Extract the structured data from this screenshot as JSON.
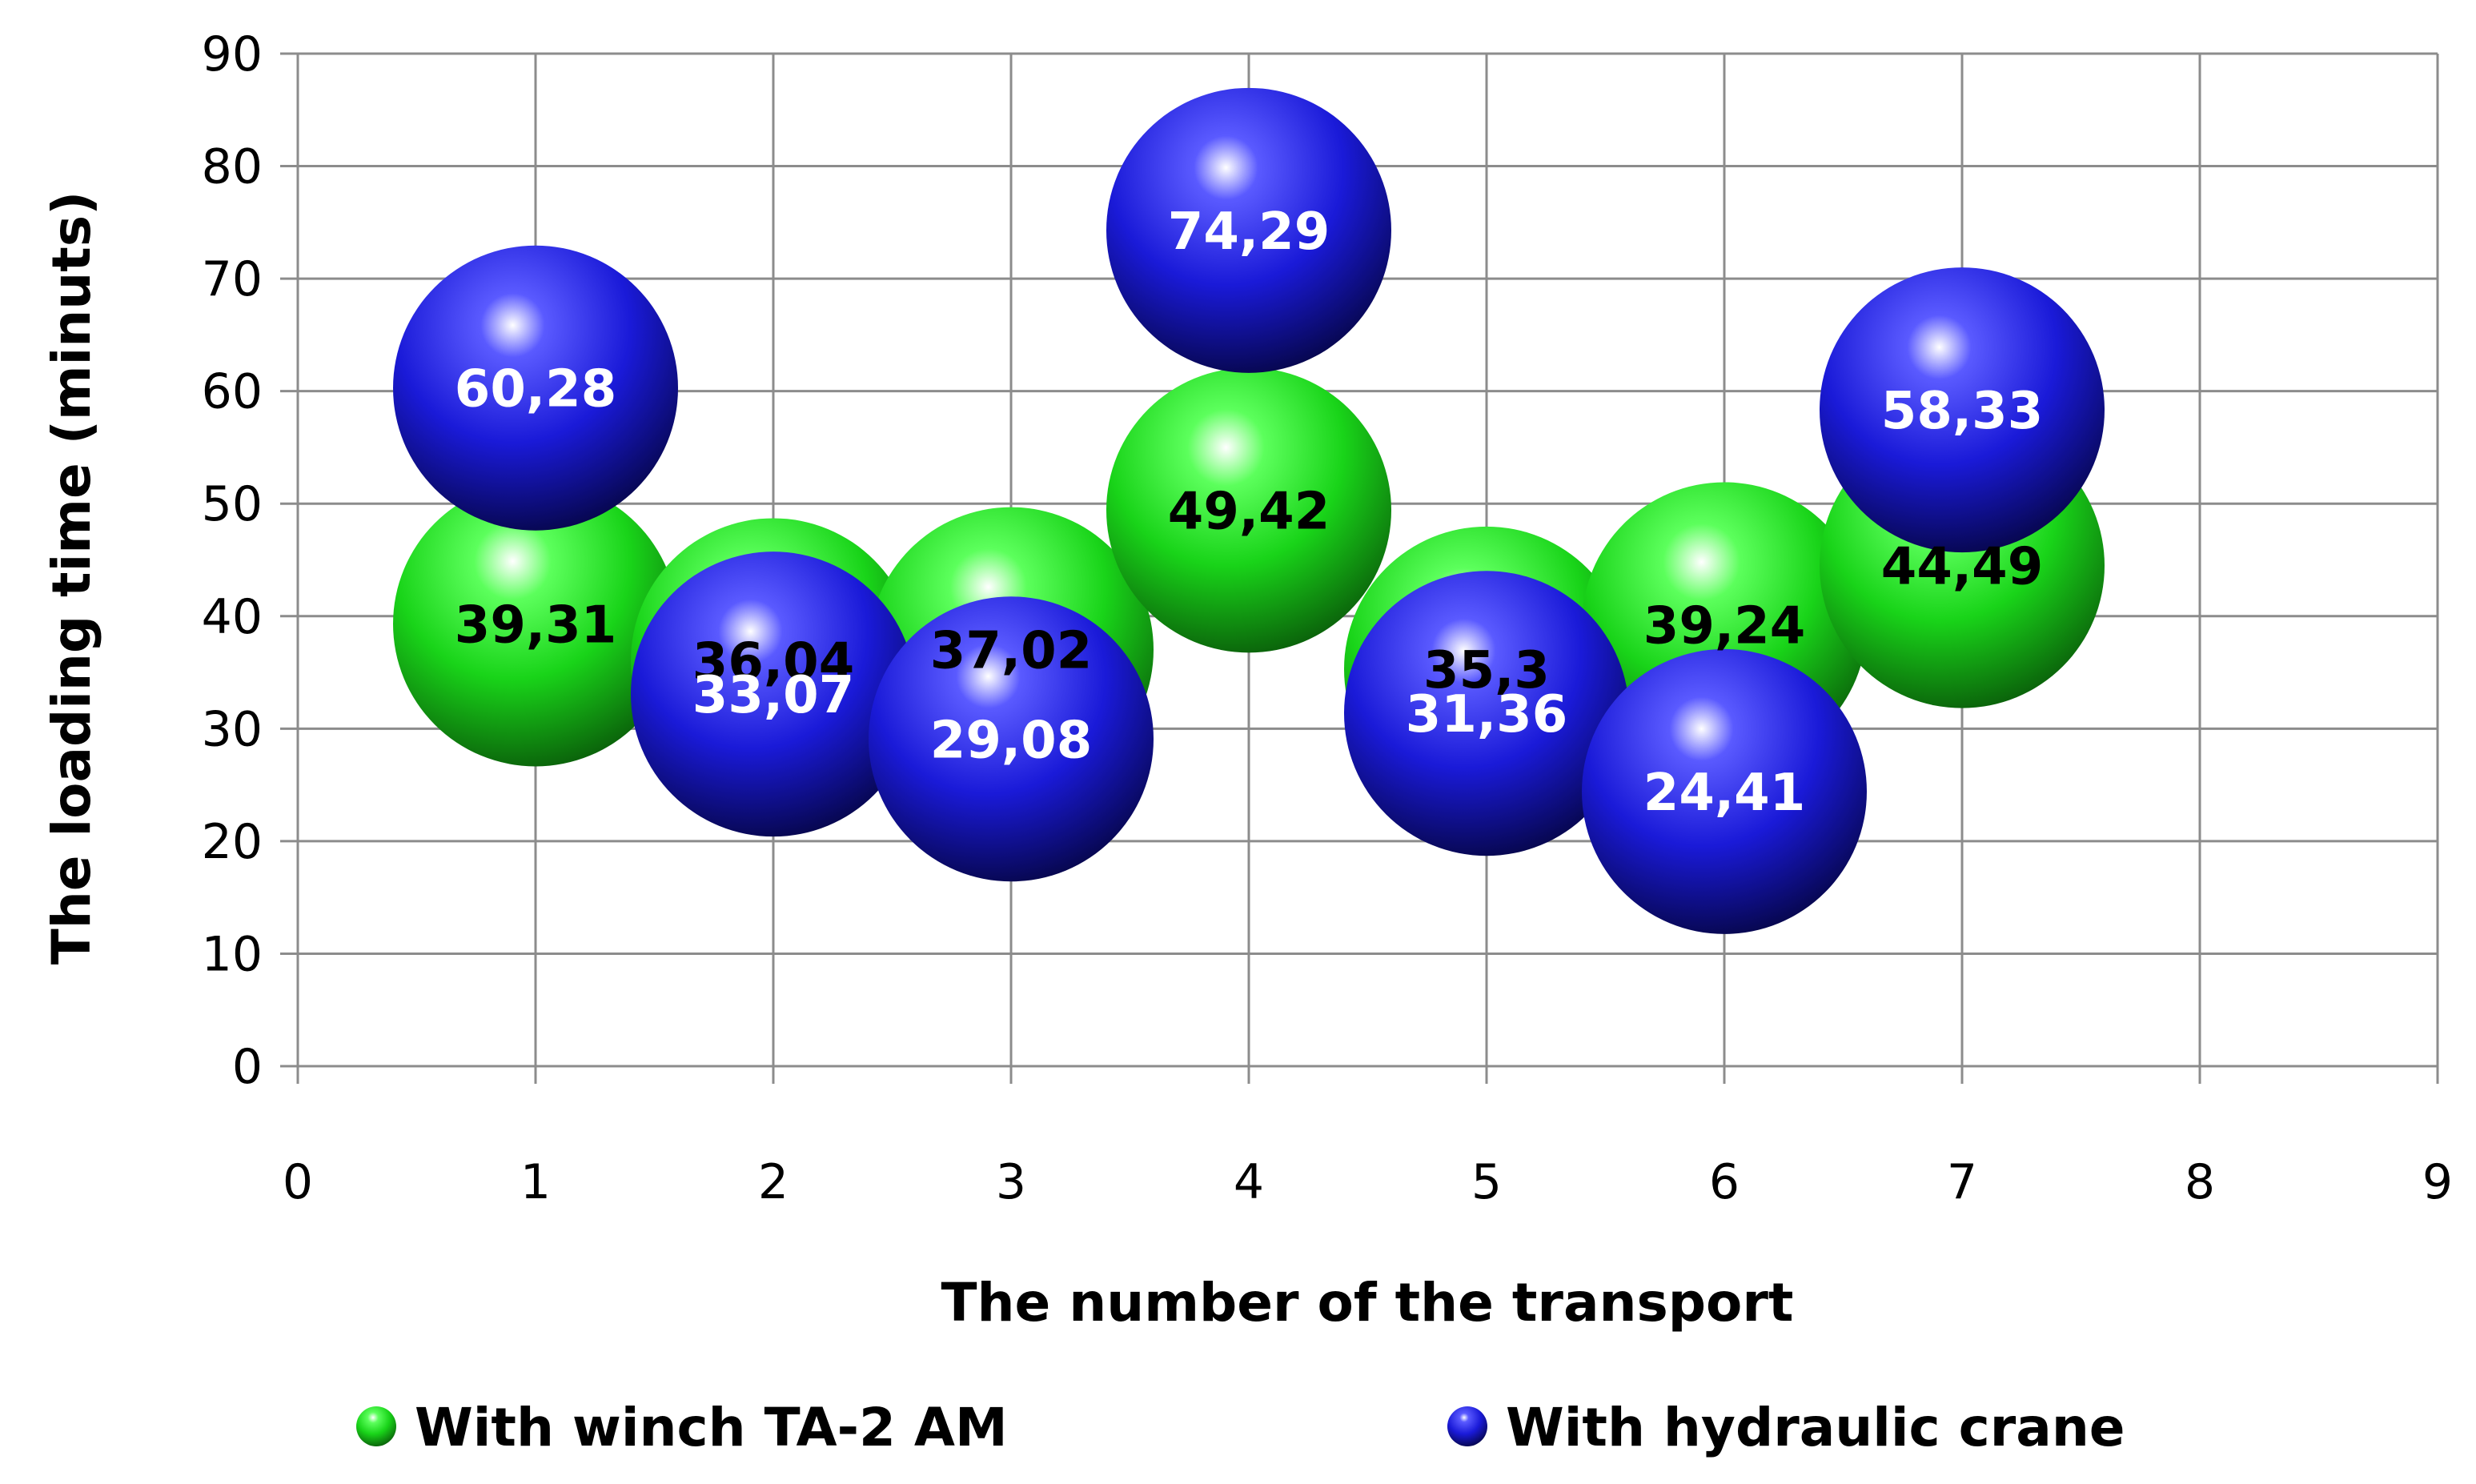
{
  "chart_data": {
    "type": "bubble",
    "title": "",
    "xlabel": "The number of the transport",
    "ylabel": "The loading time (minuts)",
    "xlim": [
      0,
      9
    ],
    "ylim": [
      0,
      90
    ],
    "x_ticks": [
      "0",
      "1",
      "2",
      "3",
      "4",
      "5",
      "6",
      "7",
      "8",
      "9"
    ],
    "y_ticks": [
      "0",
      "10",
      "20",
      "30",
      "40",
      "50",
      "60",
      "70",
      "80",
      "90"
    ],
    "grid": true,
    "legend_position": "bottom",
    "series": [
      {
        "name": "With winch TA-2 AM",
        "color": "#19d419",
        "label_color": "#000000",
        "points": [
          {
            "x": 1,
            "y": 39.31,
            "label": "39,31"
          },
          {
            "x": 2,
            "y": 36.04,
            "label": "36,04"
          },
          {
            "x": 3,
            "y": 37.02,
            "label": "37,02"
          },
          {
            "x": 4,
            "y": 49.42,
            "label": "49,42"
          },
          {
            "x": 5,
            "y": 35.3,
            "label": "35,3"
          },
          {
            "x": 6,
            "y": 39.24,
            "label": "39,24"
          },
          {
            "x": 7,
            "y": 44.49,
            "label": "44,49"
          }
        ]
      },
      {
        "name": "With hydraulic crane",
        "color": "#1a1ad8",
        "label_color": "#ffffff",
        "points": [
          {
            "x": 1,
            "y": 60.28,
            "label": "60,28"
          },
          {
            "x": 2,
            "y": 33.07,
            "label": "33,07"
          },
          {
            "x": 3,
            "y": 29.08,
            "label": "29,08"
          },
          {
            "x": 4,
            "y": 74.29,
            "label": "74,29"
          },
          {
            "x": 5,
            "y": 31.36,
            "label": "31,36"
          },
          {
            "x": 6,
            "y": 24.41,
            "label": "24,41"
          },
          {
            "x": 7,
            "y": 58.33,
            "label": "58,33"
          }
        ]
      }
    ]
  }
}
